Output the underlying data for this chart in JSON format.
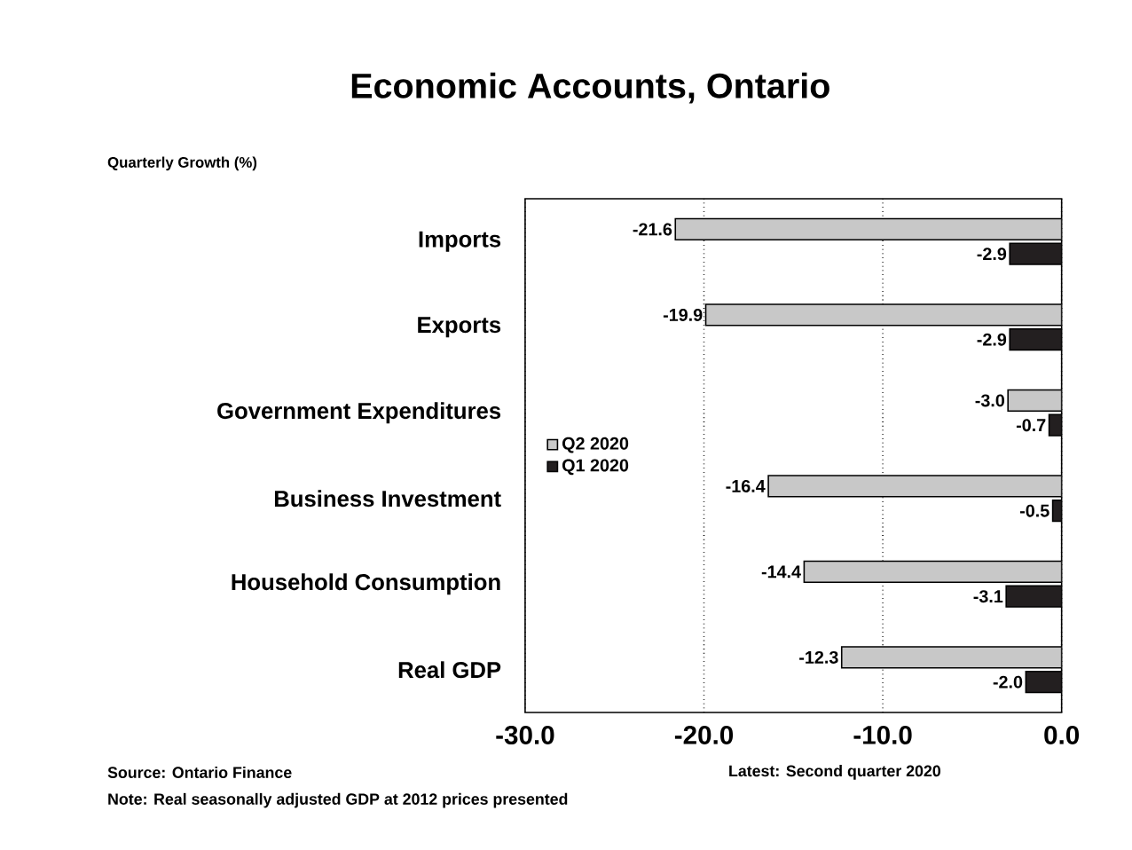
{
  "chart_data": {
    "type": "bar",
    "orientation": "horizontal",
    "title": "Economic Accounts, Ontario",
    "xlabel": "Quarterly Growth (%)",
    "categories": [
      "Imports",
      "Exports",
      "Government Expenditures",
      "Business Investment",
      "Household Consumption",
      "Real GDP"
    ],
    "series": [
      {
        "name": "Q2 2020",
        "color": "#c8c8c8",
        "values": [
          -21.6,
          -19.9,
          -3.0,
          -16.4,
          -14.4,
          -12.3
        ],
        "value_labels": [
          "-21.6",
          "-19.9",
          "-3.0",
          "-16.4",
          "-14.4",
          "-12.3"
        ]
      },
      {
        "name": "Q1 2020",
        "color": "#231f20",
        "values": [
          -2.9,
          -2.9,
          -0.7,
          -0.5,
          -3.1,
          -2.0
        ],
        "value_labels": [
          "-2.9",
          "-2.9",
          "-0.7",
          "-0.5",
          "-3.1",
          "-2.0"
        ]
      }
    ],
    "xlim": [
      -30,
      0
    ],
    "xticks": [
      {
        "value": -30,
        "label": "-30.0"
      },
      {
        "value": -20,
        "label": "-20.0"
      },
      {
        "value": -10,
        "label": "-10.0"
      },
      {
        "value": 0,
        "label": "0.0"
      }
    ],
    "grid": "x",
    "legend": "left",
    "annotations": [
      "Source: Ontario Finance",
      "Latest: Second quarter 2020",
      "Note: Real seasonally adjusted GDP at 2012 prices presented"
    ]
  }
}
